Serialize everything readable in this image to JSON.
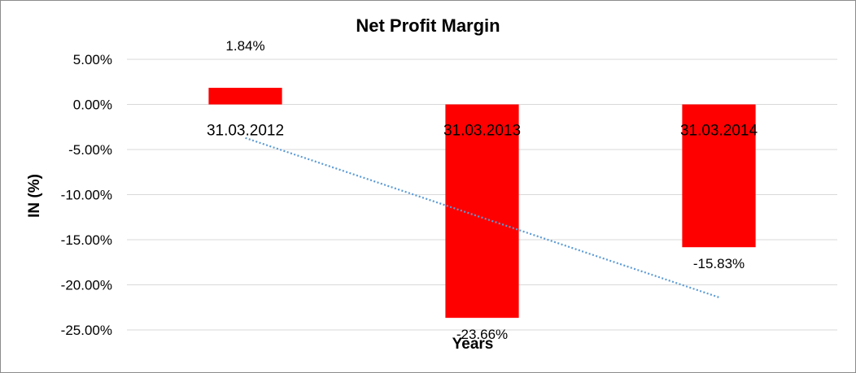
{
  "chart_data": {
    "type": "bar",
    "title": "Net Profit Margin",
    "xlabel": "Years",
    "ylabel": "IN (%)",
    "categories": [
      "31.03.2012",
      "31.03.2013",
      "31.03.2014"
    ],
    "values": [
      1.84,
      -23.66,
      -15.83
    ],
    "data_labels": [
      "1.84%",
      "-23.66%",
      "-15.83%"
    ],
    "ylim": [
      -25,
      5
    ],
    "y_ticks": [
      5,
      0,
      -5,
      -10,
      -15,
      -20,
      -25
    ],
    "y_tick_labels": [
      "5.00%",
      "0.00%",
      "-5.00%",
      "-10.00%",
      "-15.00%",
      "-20.00%",
      "-25.00%"
    ],
    "grid": true,
    "bar_color": "#ff0000",
    "trendline": {
      "type": "linear",
      "style": "dotted",
      "color": "#5b9bd5"
    }
  }
}
